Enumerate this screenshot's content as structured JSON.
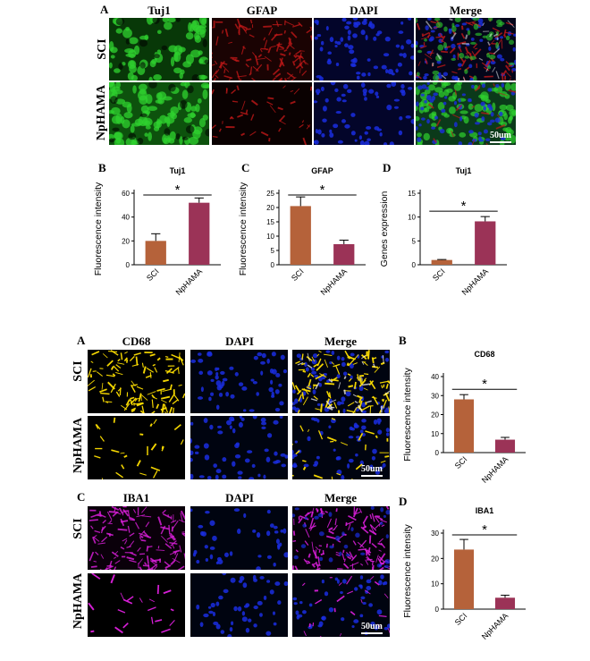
{
  "fig1": {
    "panel_A": "A",
    "channels": [
      "Tuj1",
      "GFAP",
      "DAPI",
      "Merge"
    ],
    "rows": [
      "SCI",
      "NpHAMA"
    ],
    "scale_bar": "50um",
    "panel_B": "B",
    "panel_C": "C",
    "panel_D": "D"
  },
  "fig2": {
    "panel_A": "A",
    "channels_A": [
      "CD68",
      "DAPI",
      "Merge"
    ],
    "rows": [
      "SCI",
      "NpHAMA"
    ],
    "scale_bar_A": "50um",
    "panel_B": "B",
    "panel_C": "C",
    "channels_C": [
      "IBA1",
      "DAPI",
      "Merge"
    ],
    "scale_bar_C": "50um",
    "panel_D": "D"
  },
  "colors": {
    "sci_bar": "#b5623a",
    "nphama_bar": "#9b3357",
    "tuj1": "#2fd12f",
    "gfap": "#c01818",
    "dapi": "#1a2ee0",
    "cd68": "#ffe000",
    "iba1": "#e020e0"
  },
  "chart_data": [
    {
      "id": "fig1-B",
      "type": "bar",
      "title": "Tuj1",
      "xlabel": "",
      "ylabel": "Fluorescence intensity",
      "categories": [
        "SCI",
        "NpHAMA"
      ],
      "values": [
        20,
        52
      ],
      "errors": [
        6,
        4
      ],
      "ylim": [
        0,
        60
      ],
      "yticks": [
        0,
        20,
        40,
        60
      ],
      "significance": "*"
    },
    {
      "id": "fig1-C",
      "type": "bar",
      "title": "GFAP",
      "xlabel": "",
      "ylabel": "Fluorescence intensity",
      "categories": [
        "SCI",
        "NpHAMA"
      ],
      "values": [
        20.5,
        7.2
      ],
      "errors": [
        3.2,
        1.4
      ],
      "ylim": [
        0,
        25
      ],
      "yticks": [
        0,
        5,
        10,
        15,
        20,
        25
      ],
      "significance": "*"
    },
    {
      "id": "fig1-D",
      "type": "bar",
      "title": "Tuj1",
      "xlabel": "",
      "ylabel": "Genes expression",
      "categories": [
        "SCI",
        "NpHAMA"
      ],
      "values": [
        1,
        9.1
      ],
      "errors": [
        0.1,
        1.0
      ],
      "ylim": [
        0,
        15
      ],
      "yticks": [
        0,
        5,
        10,
        15
      ],
      "significance": "*"
    },
    {
      "id": "fig2-B",
      "type": "bar",
      "title": "CD68",
      "xlabel": "",
      "ylabel": "Fluorescence intensity",
      "categories": [
        "SCI",
        "NpHAMA"
      ],
      "values": [
        28,
        6.8
      ],
      "errors": [
        2.5,
        1.2
      ],
      "ylim": [
        0,
        40
      ],
      "yticks": [
        0,
        10,
        20,
        30,
        40
      ],
      "significance": "*"
    },
    {
      "id": "fig2-D",
      "type": "bar",
      "title": "IBA1",
      "xlabel": "",
      "ylabel": "Fluorescence intensity",
      "categories": [
        "SCI",
        "NpHAMA"
      ],
      "values": [
        23.5,
        4.5
      ],
      "errors": [
        4,
        1
      ],
      "ylim": [
        0,
        30
      ],
      "yticks": [
        0,
        10,
        20,
        30
      ],
      "significance": "*"
    }
  ]
}
